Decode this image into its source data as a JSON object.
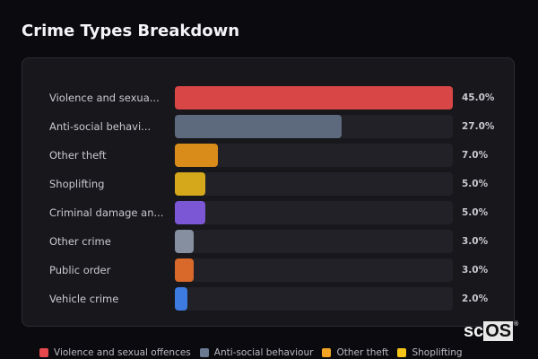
{
  "header": {
    "title": "Crime Types Breakdown"
  },
  "chart_data": {
    "type": "bar",
    "orientation": "horizontal",
    "title": "Crime Types Breakdown",
    "categories": [
      "Violence and sexual offences",
      "Anti-social behaviour",
      "Other theft",
      "Shoplifting",
      "Criminal damage and arson",
      "Other crime",
      "Public order",
      "Vehicle crime"
    ],
    "display_labels": [
      "Violence and sexua...",
      "Anti-social behavi...",
      "Other theft",
      "Shoplifting",
      "Criminal damage an...",
      "Other crime",
      "Public order",
      "Vehicle crime"
    ],
    "values": [
      45.0,
      27.0,
      7.0,
      5.0,
      5.0,
      3.0,
      3.0,
      2.0
    ],
    "value_labels": [
      "45.0%",
      "27.0%",
      "7.0%",
      "5.0%",
      "5.0%",
      "3.0%",
      "3.0%",
      "2.0%"
    ],
    "colors": [
      "#d94646",
      "#5d6a7e",
      "#d98c1a",
      "#d4a81a",
      "#7b57d6",
      "#858fa0",
      "#d9692a",
      "#3d7be0"
    ],
    "max_value": 45.0,
    "xlabel": "",
    "ylabel": "",
    "grid": false,
    "legend_position": "bottom"
  },
  "legend": [
    {
      "label": "Violence and sexual offences",
      "color": "#e5484d"
    },
    {
      "label": "Anti-social behaviour",
      "color": "#6b7a90"
    },
    {
      "label": "Other theft",
      "color": "#f5a524"
    },
    {
      "label": "Shoplifting",
      "color": "#f5c518"
    }
  ],
  "logo": {
    "text_a": "sc",
    "text_b": "OS",
    "mark": "®"
  }
}
